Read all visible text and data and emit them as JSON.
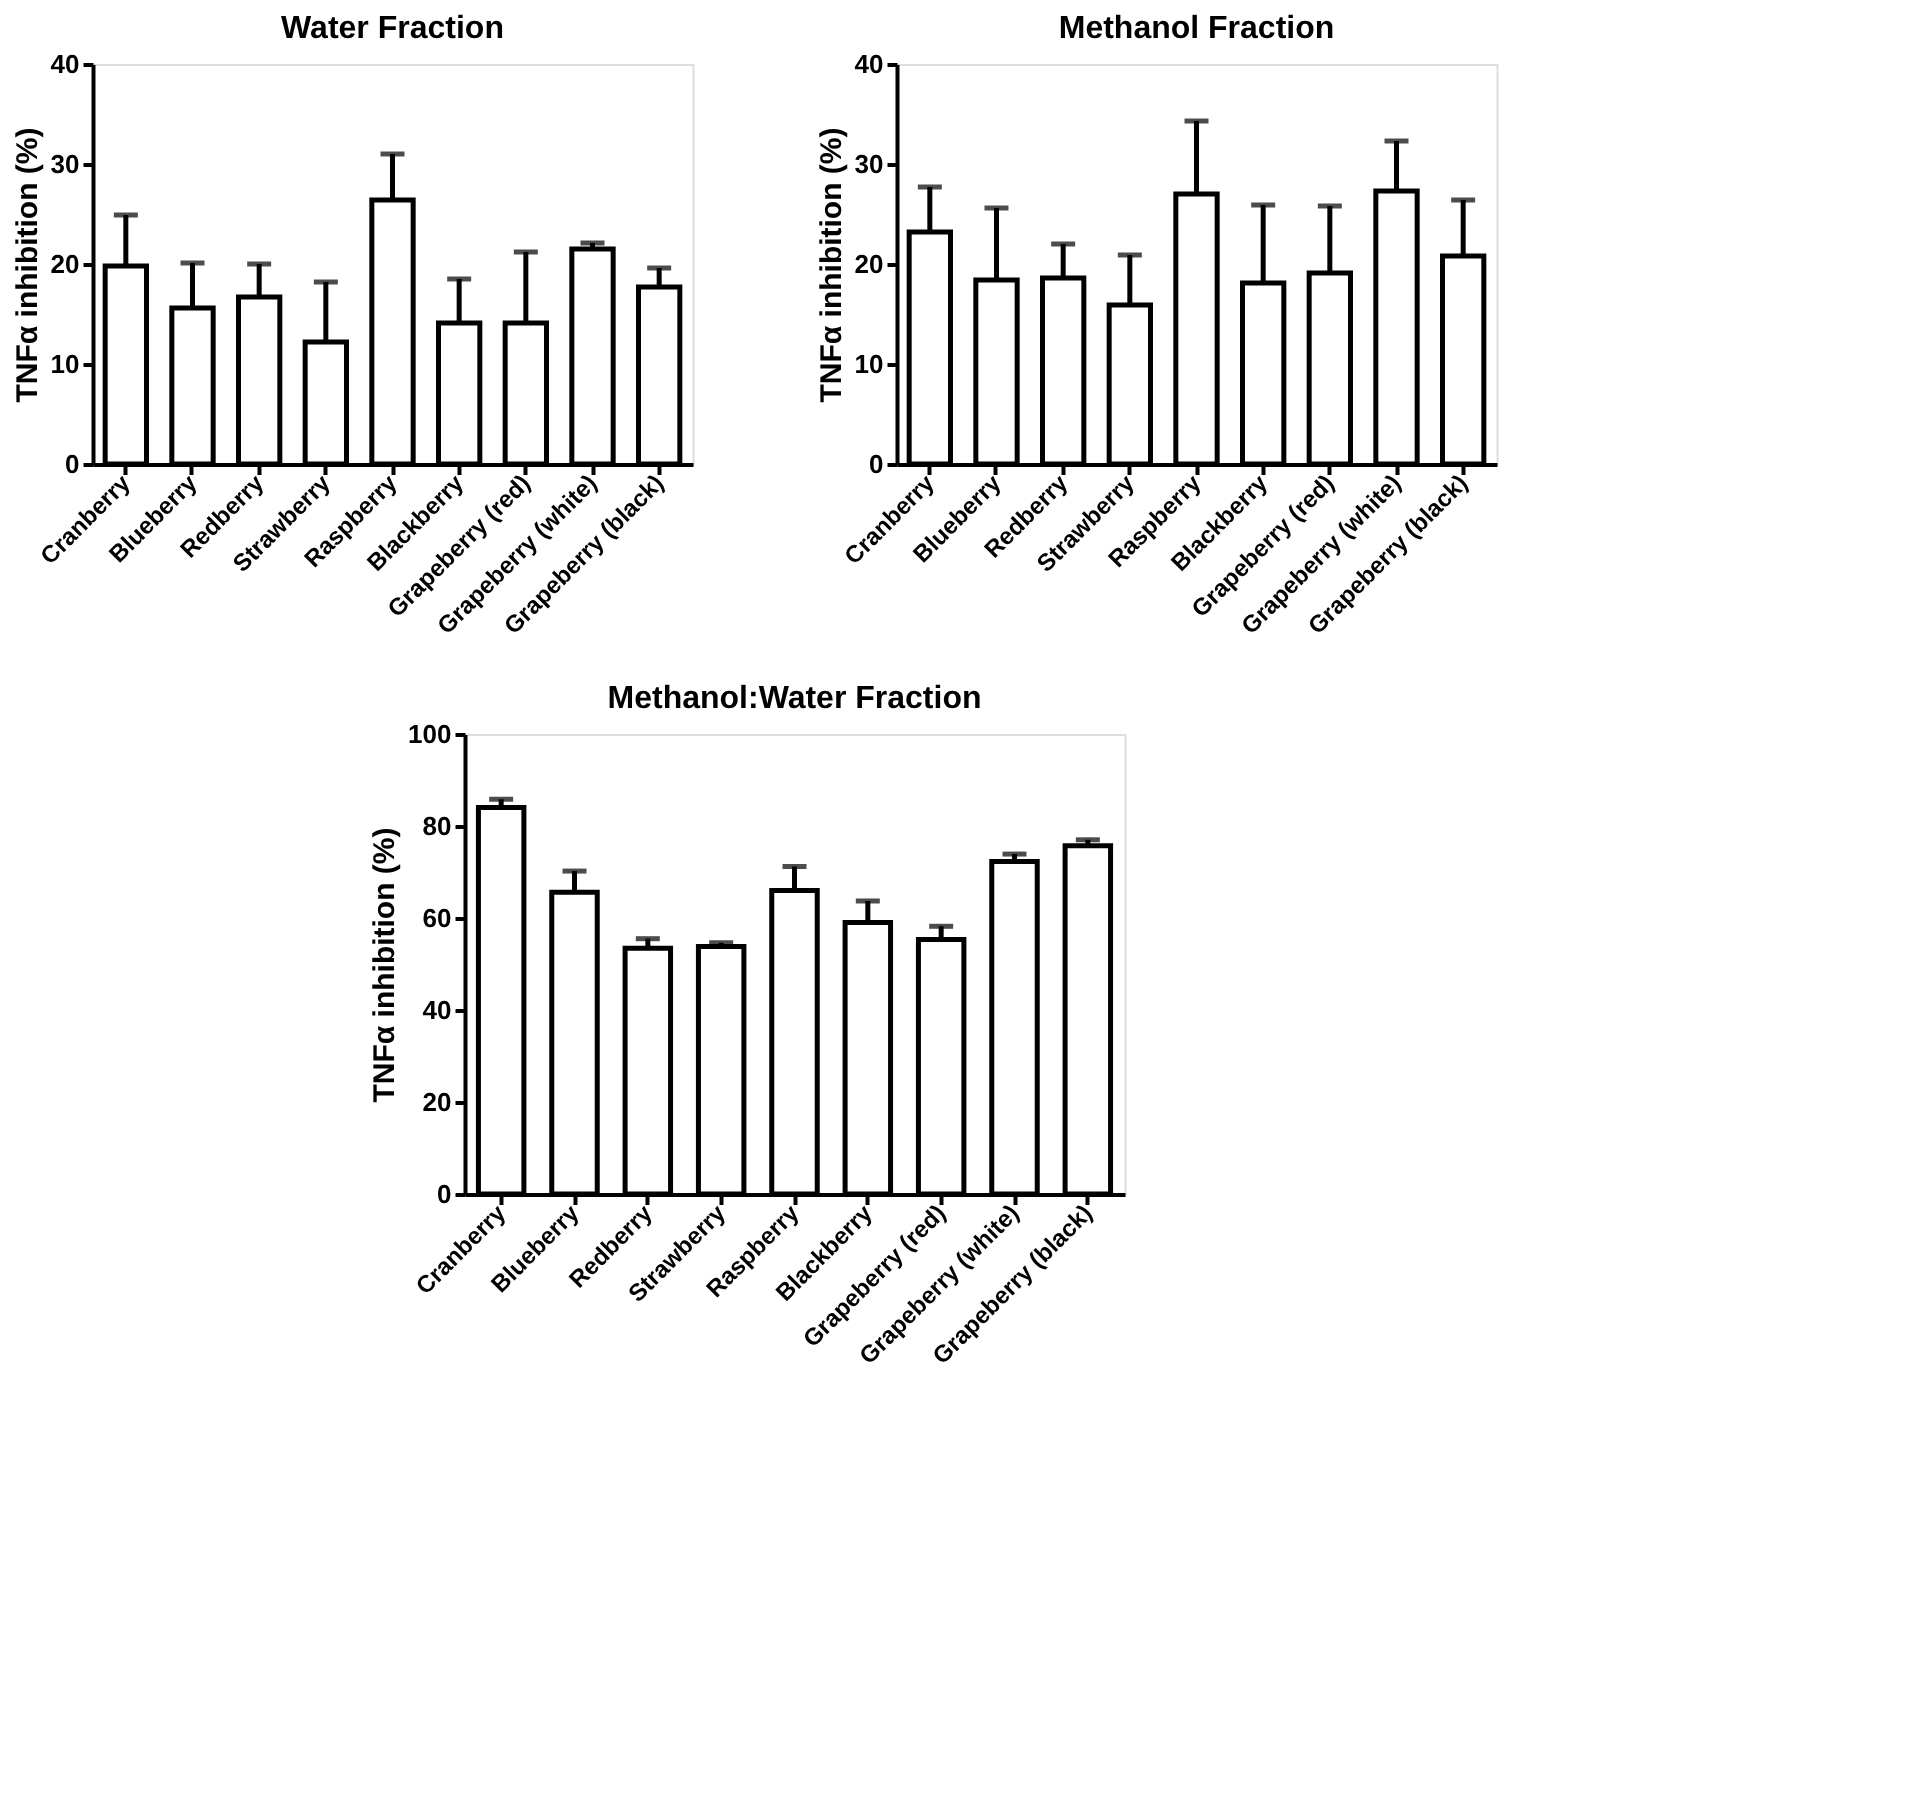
{
  "chart_data": [
    {
      "type": "bar",
      "title": "Water Fraction",
      "ylabel": "TNFα inhibition (%)",
      "categories": [
        "Cranberry",
        "Blueberry",
        "Redberry",
        "Strawberry",
        "Raspberry",
        "Blackberry",
        "Grapeberry (red)",
        "Grapeberry (white)",
        "Grapeberry (black)"
      ],
      "values": [
        19.8,
        15.6,
        16.7,
        12.2,
        26.4,
        14.1,
        14.1,
        21.5,
        17.7
      ],
      "errors": [
        [
          19.8,
          24.9
        ],
        [
          15.6,
          20.1
        ],
        [
          16.7,
          20.0
        ],
        [
          12.2,
          18.2
        ],
        [
          26.4,
          31.0
        ],
        [
          14.1,
          18.5
        ],
        [
          14.1,
          21.2
        ],
        [
          21.5,
          22.1
        ],
        [
          17.7,
          19.6
        ]
      ],
      "ylim": [
        0,
        40
      ],
      "yticks": [
        0,
        10,
        20,
        30,
        40
      ],
      "grid": false
    },
    {
      "type": "bar",
      "title": "Methanol Fraction",
      "ylabel": "TNFα inhibition (%)",
      "categories": [
        "Cranberry",
        "Blueberry",
        "Redberry",
        "Strawberry",
        "Raspberry",
        "Blackberry",
        "Grapeberry (red)",
        "Grapeberry (white)",
        "Grapeberry (black)"
      ],
      "values": [
        23.2,
        18.4,
        18.6,
        15.9,
        27.0,
        18.1,
        19.1,
        27.3,
        20.8
      ],
      "errors": [
        [
          23.2,
          27.7
        ],
        [
          18.4,
          25.6
        ],
        [
          18.6,
          22.0
        ],
        [
          15.9,
          20.9
        ],
        [
          27.0,
          34.3
        ],
        [
          18.1,
          25.9
        ],
        [
          19.1,
          25.8
        ],
        [
          27.3,
          32.3
        ],
        [
          20.8,
          26.4
        ]
      ],
      "ylim": [
        0,
        40
      ],
      "yticks": [
        0,
        10,
        20,
        30,
        40
      ],
      "grid": false
    },
    {
      "type": "bar",
      "title": "Methanol:Water Fraction",
      "ylabel": "TNFα inhibition (%)",
      "categories": [
        "Cranberry",
        "Blueberry",
        "Redberry",
        "Strawberry",
        "Raspberry",
        "Blackberry",
        "Grapeberry (red)",
        "Grapeberry (white)",
        "Grapeberry (black)"
      ],
      "values": [
        84.0,
        65.6,
        53.4,
        53.8,
        66.0,
        59.0,
        55.3,
        72.3,
        75.7
      ],
      "errors": [
        [
          84.0,
          85.8
        ],
        [
          65.6,
          70.2
        ],
        [
          53.4,
          55.5
        ],
        [
          53.8,
          54.6
        ],
        [
          66.0,
          71.2
        ],
        [
          59.0,
          63.7
        ],
        [
          55.3,
          58.2
        ],
        [
          72.3,
          73.9
        ],
        [
          75.7,
          77.0
        ]
      ],
      "ylim": [
        0,
        100
      ],
      "yticks": [
        0,
        20,
        40,
        60,
        80,
        100
      ],
      "grid": false
    }
  ]
}
